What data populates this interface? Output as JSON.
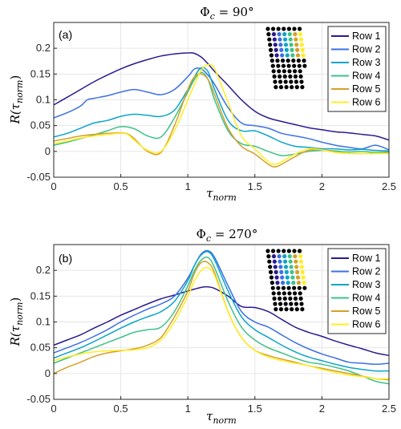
{
  "colors": {
    "series": [
      "#2b1a8f",
      "#3d6fe6",
      "#0ba5c8",
      "#3ec28a",
      "#d4a02a",
      "#ffee22"
    ],
    "dot_black": "#000000",
    "grid": "#e6e6e6",
    "axis": "#262626"
  },
  "chart_data": [
    {
      "type": "line",
      "panel_label": "(a)",
      "title": "Φc = 90°",
      "title_main": "Φ",
      "title_sub": "c",
      "title_rest": " = 90°",
      "xlabel": "τnorm",
      "xlabel_main": "τ",
      "xlabel_sub": "norm",
      "ylabel": "R(τnorm)",
      "ylabel_pre": "R(τ",
      "ylabel_sub": "norm",
      "ylabel_post": ")",
      "xlim": [
        0,
        2.5
      ],
      "ylim": [
        -0.05,
        0.25
      ],
      "xticks": [
        "0",
        "0.5",
        "1",
        "1.5",
        "2",
        "2.5"
      ],
      "yticks": [
        "-0.05",
        "0",
        "0.05",
        "0.1",
        "0.15",
        "0.2"
      ],
      "grid": true,
      "legend_position": "top-right",
      "inset_highlight": "top",
      "series": [
        {
          "name": "Row 1",
          "x": [
            0,
            0.1,
            0.2,
            0.3,
            0.4,
            0.5,
            0.6,
            0.7,
            0.8,
            0.9,
            1.0,
            1.05,
            1.1,
            1.15,
            1.2,
            1.3,
            1.4,
            1.5,
            1.6,
            1.7,
            1.8,
            1.9,
            2.0,
            2.1,
            2.2,
            2.3,
            2.4,
            2.5
          ],
          "y": [
            0.09,
            0.105,
            0.12,
            0.135,
            0.148,
            0.16,
            0.17,
            0.178,
            0.185,
            0.189,
            0.191,
            0.19,
            0.183,
            0.17,
            0.155,
            0.128,
            0.1,
            0.078,
            0.065,
            0.058,
            0.052,
            0.046,
            0.042,
            0.038,
            0.036,
            0.033,
            0.03,
            0.022
          ]
        },
        {
          "name": "Row 2",
          "x": [
            0,
            0.1,
            0.2,
            0.25,
            0.3,
            0.4,
            0.5,
            0.6,
            0.7,
            0.8,
            0.9,
            1.0,
            1.05,
            1.1,
            1.15,
            1.2,
            1.3,
            1.4,
            1.5,
            1.6,
            1.7,
            1.8,
            1.9,
            2.0,
            2.1,
            2.2,
            2.3,
            2.4,
            2.5
          ],
          "y": [
            0.065,
            0.075,
            0.088,
            0.1,
            0.103,
            0.108,
            0.115,
            0.12,
            0.115,
            0.11,
            0.12,
            0.145,
            0.16,
            0.16,
            0.148,
            0.13,
            0.085,
            0.055,
            0.05,
            0.045,
            0.035,
            0.03,
            0.025,
            0.018,
            0.012,
            0.008,
            0.005,
            0.012,
            0.003
          ]
        },
        {
          "name": "Row 3",
          "x": [
            0,
            0.1,
            0.2,
            0.3,
            0.4,
            0.5,
            0.6,
            0.7,
            0.8,
            0.9,
            1.0,
            1.05,
            1.1,
            1.15,
            1.2,
            1.3,
            1.4,
            1.5,
            1.6,
            1.7,
            1.8,
            1.9,
            2.0,
            2.1,
            2.2,
            2.3,
            2.4,
            2.5
          ],
          "y": [
            0.028,
            0.035,
            0.045,
            0.055,
            0.06,
            0.068,
            0.072,
            0.07,
            0.068,
            0.08,
            0.12,
            0.145,
            0.162,
            0.155,
            0.12,
            0.06,
            0.04,
            0.04,
            0.03,
            0.018,
            0.01,
            0.008,
            0.005,
            0.005,
            0.003,
            0.004,
            0.002,
            0.001
          ]
        },
        {
          "name": "Row 4",
          "x": [
            0,
            0.1,
            0.2,
            0.3,
            0.4,
            0.5,
            0.6,
            0.7,
            0.8,
            0.9,
            1.0,
            1.05,
            1.1,
            1.15,
            1.2,
            1.3,
            1.4,
            1.5,
            1.6,
            1.7,
            1.8,
            1.9,
            2.0,
            2.1,
            2.2,
            2.3,
            2.4,
            2.5
          ],
          "y": [
            0.012,
            0.018,
            0.025,
            0.032,
            0.04,
            0.048,
            0.044,
            0.03,
            0.028,
            0.065,
            0.115,
            0.14,
            0.153,
            0.14,
            0.1,
            0.04,
            0.015,
            0.01,
            0.0,
            -0.008,
            -0.005,
            0.0,
            0.002,
            0.001,
            -0.001,
            0.0,
            -0.002,
            -0.001
          ]
        },
        {
          "name": "Row 5",
          "x": [
            0,
            0.1,
            0.2,
            0.3,
            0.4,
            0.5,
            0.55,
            0.6,
            0.7,
            0.8,
            0.9,
            1.0,
            1.05,
            1.1,
            1.15,
            1.2,
            1.3,
            1.4,
            1.5,
            1.6,
            1.65,
            1.7,
            1.8,
            1.9,
            2.0,
            2.1,
            2.2,
            2.3,
            2.4,
            2.5
          ],
          "y": [
            0.02,
            0.025,
            0.03,
            0.033,
            0.035,
            0.036,
            0.034,
            0.025,
            0.0,
            -0.002,
            0.05,
            0.12,
            0.145,
            0.15,
            0.14,
            0.11,
            0.045,
            0.01,
            -0.005,
            -0.025,
            -0.03,
            -0.025,
            -0.01,
            0.002,
            0.003,
            -0.001,
            -0.004,
            -0.004,
            -0.004,
            -0.003
          ]
        },
        {
          "name": "Row 6",
          "x": [
            0,
            0.1,
            0.2,
            0.3,
            0.4,
            0.5,
            0.55,
            0.6,
            0.7,
            0.8,
            0.9,
            1.0,
            1.05,
            1.1,
            1.15,
            1.2,
            1.3,
            1.4,
            1.5,
            1.6,
            1.65,
            1.7,
            1.8,
            1.9,
            2.0,
            2.1,
            2.2,
            2.3,
            2.4,
            2.5
          ],
          "y": [
            0.015,
            0.02,
            0.026,
            0.03,
            0.033,
            0.035,
            0.033,
            0.022,
            0.002,
            0.0,
            0.04,
            0.1,
            0.13,
            0.158,
            0.168,
            0.16,
            0.095,
            0.03,
            0.005,
            -0.02,
            -0.025,
            -0.02,
            -0.005,
            0.005,
            0.003,
            -0.002,
            -0.004,
            -0.004,
            -0.004,
            -0.004
          ]
        }
      ]
    },
    {
      "type": "line",
      "panel_label": "(b)",
      "title": "Φc = 270°",
      "title_main": "Φ",
      "title_sub": "c",
      "title_rest": " = 270°",
      "xlabel": "τnorm",
      "xlabel_main": "τ",
      "xlabel_sub": "norm",
      "ylabel": "R(τnorm)",
      "ylabel_pre": "R(τ",
      "ylabel_sub": "norm",
      "ylabel_post": ")",
      "xlim": [
        0,
        2.5
      ],
      "ylim": [
        -0.05,
        0.25
      ],
      "xticks": [
        "0",
        "0.5",
        "1",
        "1.5",
        "2",
        "2.5"
      ],
      "yticks": [
        "-0.05",
        "0",
        "0.05",
        "0.1",
        "0.15",
        "0.2"
      ],
      "grid": true,
      "legend_position": "top-right",
      "inset_highlight": "left",
      "series": [
        {
          "name": "Row 1",
          "x": [
            0,
            0.1,
            0.2,
            0.3,
            0.4,
            0.5,
            0.6,
            0.7,
            0.8,
            0.9,
            1.0,
            1.1,
            1.15,
            1.2,
            1.3,
            1.4,
            1.5,
            1.6,
            1.7,
            1.8,
            1.9,
            2.0,
            2.1,
            2.2,
            2.3,
            2.4,
            2.5
          ],
          "y": [
            0.055,
            0.065,
            0.075,
            0.088,
            0.1,
            0.113,
            0.124,
            0.135,
            0.145,
            0.152,
            0.16,
            0.167,
            0.168,
            0.165,
            0.15,
            0.13,
            0.128,
            0.12,
            0.105,
            0.09,
            0.08,
            0.072,
            0.063,
            0.055,
            0.048,
            0.04,
            0.035
          ]
        },
        {
          "name": "Row 2",
          "x": [
            0,
            0.1,
            0.2,
            0.3,
            0.4,
            0.5,
            0.6,
            0.7,
            0.8,
            0.9,
            1.0,
            1.05,
            1.1,
            1.15,
            1.2,
            1.3,
            1.4,
            1.5,
            1.6,
            1.7,
            1.8,
            1.9,
            2.0,
            2.1,
            2.2,
            2.3,
            2.4,
            2.5
          ],
          "y": [
            0.04,
            0.05,
            0.06,
            0.072,
            0.085,
            0.1,
            0.113,
            0.125,
            0.135,
            0.15,
            0.185,
            0.21,
            0.232,
            0.238,
            0.225,
            0.17,
            0.12,
            0.1,
            0.09,
            0.075,
            0.06,
            0.048,
            0.038,
            0.03,
            0.022,
            0.02,
            0.018,
            0.02
          ]
        },
        {
          "name": "Row 3",
          "x": [
            0,
            0.1,
            0.2,
            0.3,
            0.4,
            0.5,
            0.6,
            0.7,
            0.8,
            0.9,
            1.0,
            1.05,
            1.1,
            1.15,
            1.2,
            1.3,
            1.4,
            1.5,
            1.6,
            1.7,
            1.8,
            1.9,
            2.0,
            2.1,
            2.2,
            2.3,
            2.4,
            2.5
          ],
          "y": [
            0.03,
            0.04,
            0.05,
            0.062,
            0.075,
            0.088,
            0.1,
            0.11,
            0.12,
            0.14,
            0.18,
            0.21,
            0.23,
            0.236,
            0.22,
            0.16,
            0.11,
            0.085,
            0.07,
            0.055,
            0.042,
            0.032,
            0.025,
            0.018,
            0.012,
            0.008,
            0.005,
            0.005
          ]
        },
        {
          "name": "Row 4",
          "x": [
            0,
            0.1,
            0.2,
            0.3,
            0.4,
            0.5,
            0.6,
            0.7,
            0.8,
            0.9,
            1.0,
            1.05,
            1.1,
            1.15,
            1.2,
            1.3,
            1.4,
            1.5,
            1.6,
            1.7,
            1.8,
            1.9,
            2.0,
            2.1,
            2.2,
            2.3,
            2.4,
            2.5
          ],
          "y": [
            0.02,
            0.03,
            0.04,
            0.05,
            0.06,
            0.07,
            0.08,
            0.085,
            0.09,
            0.12,
            0.17,
            0.2,
            0.22,
            0.225,
            0.205,
            0.14,
            0.09,
            0.065,
            0.05,
            0.04,
            0.03,
            0.022,
            0.018,
            0.012,
            0.005,
            -0.005,
            -0.015,
            -0.02
          ]
        },
        {
          "name": "Row 5",
          "x": [
            0,
            0.1,
            0.2,
            0.3,
            0.4,
            0.5,
            0.6,
            0.7,
            0.8,
            0.9,
            1.0,
            1.05,
            1.1,
            1.15,
            1.2,
            1.3,
            1.4,
            1.5,
            1.6,
            1.7,
            1.8,
            1.9,
            2.0,
            2.1,
            2.2,
            2.3,
            2.4,
            2.5
          ],
          "y": [
            0.0,
            0.012,
            0.022,
            0.033,
            0.04,
            0.044,
            0.048,
            0.055,
            0.07,
            0.11,
            0.16,
            0.195,
            0.215,
            0.215,
            0.195,
            0.12,
            0.07,
            0.045,
            0.035,
            0.028,
            0.022,
            0.015,
            0.01,
            0.005,
            0.0,
            -0.005,
            -0.01,
            -0.012
          ]
        },
        {
          "name": "Row 6",
          "x": [
            0,
            0.1,
            0.2,
            0.3,
            0.4,
            0.5,
            0.6,
            0.7,
            0.8,
            0.9,
            1.0,
            1.05,
            1.1,
            1.15,
            1.2,
            1.3,
            1.4,
            1.5,
            1.6,
            1.7,
            1.8,
            1.9,
            2.0,
            2.1,
            2.2,
            2.3,
            2.4,
            2.5
          ],
          "y": [
            0.025,
            0.032,
            0.038,
            0.042,
            0.044,
            0.045,
            0.046,
            0.05,
            0.065,
            0.1,
            0.15,
            0.18,
            0.2,
            0.205,
            0.19,
            0.12,
            0.07,
            0.045,
            0.032,
            0.025,
            0.02,
            0.015,
            0.008,
            0.002,
            -0.003,
            -0.006,
            -0.01,
            -0.01
          ]
        }
      ]
    }
  ]
}
